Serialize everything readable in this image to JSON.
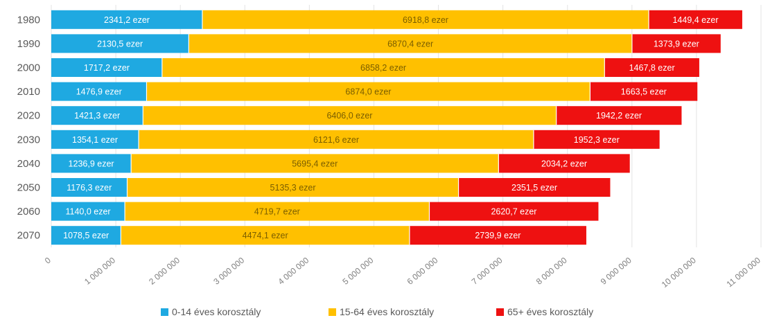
{
  "chart_data": {
    "type": "bar",
    "orientation": "horizontal",
    "stacked": true,
    "title": "",
    "xlabel": "",
    "ylabel": "",
    "xlim": [
      0,
      11000000
    ],
    "grid": true,
    "legend_position": "bottom",
    "categories": [
      "1980",
      "1990",
      "2000",
      "2010",
      "2020",
      "2030",
      "2040",
      "2050",
      "2060",
      "2070"
    ],
    "x_ticks": [
      0,
      1000000,
      2000000,
      3000000,
      4000000,
      5000000,
      6000000,
      7000000,
      8000000,
      9000000,
      10000000,
      11000000
    ],
    "x_tick_labels": [
      "0",
      "1 000 000",
      "2 000 000",
      "3 000 000",
      "4 000 000",
      "5 000 000",
      "6 000 000",
      "7 000 000",
      "8 000 000",
      "9 000 000",
      "10 000 000",
      "11 000 000"
    ],
    "series": [
      {
        "name": "0-14 éves korosztály",
        "color": "#1fa9e1",
        "label_color": "#ffffff",
        "values": [
          2341200,
          2130500,
          1717200,
          1476900,
          1421300,
          1354100,
          1236900,
          1176300,
          1140000,
          1078500
        ],
        "labels": [
          "2341,2 ezer",
          "2130,5 ezer",
          "1717,2 ezer",
          "1476,9 ezer",
          "1421,3 ezer",
          "1354,1 ezer",
          "1236,9 ezer",
          "1176,3 ezer",
          "1140,0 ezer",
          "1078,5 ezer"
        ]
      },
      {
        "name": "15-64 éves korosztály",
        "color": "#ffc000",
        "label_color": "#7a5e00",
        "values": [
          6918800,
          6870400,
          6858200,
          6874000,
          6406000,
          6121600,
          5695400,
          5135300,
          4719700,
          4474100
        ],
        "labels": [
          "6918,8 ezer",
          "6870,4 ezer",
          "6858,2 ezer",
          "6874,0 ezer",
          "6406,0 ezer",
          "6121,6 ezer",
          "5695,4 ezer",
          "5135,3 ezer",
          "4719,7 ezer",
          "4474,1 ezer"
        ]
      },
      {
        "name": "65+ éves korosztály",
        "color": "#ee1111",
        "label_color": "#ffffff",
        "values": [
          1449400,
          1373900,
          1467800,
          1663500,
          1942200,
          1952300,
          2034200,
          2351500,
          2620700,
          2739900
        ],
        "labels": [
          "1449,4 ezer",
          "1373,9 ezer",
          "1467,8 ezer",
          "1663,5 ezer",
          "1942,2 ezer",
          "1952,3 ezer",
          "2034,2 ezer",
          "2351,5 ezer",
          "2620,7 ezer",
          "2739,9 ezer"
        ]
      }
    ]
  }
}
